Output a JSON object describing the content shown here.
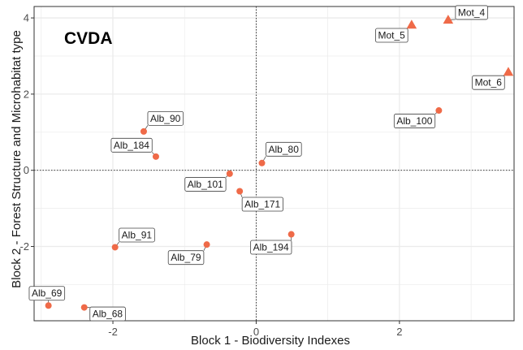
{
  "chart_data": {
    "type": "scatter",
    "annotation": "CVDA",
    "xlabel": "Block 1 - Biodiversity Indexes",
    "ylabel": "Block 2 - Forest Structure and Microhabitat type",
    "xlim": [
      -3.1,
      3.6
    ],
    "ylim": [
      -3.95,
      4.3
    ],
    "x_ticks": [
      -2,
      0,
      2
    ],
    "x_tick_labels": [
      "-2",
      "0",
      "2"
    ],
    "y_ticks": [
      -2,
      0,
      2,
      4
    ],
    "y_tick_labels": [
      "-2",
      "0",
      "2",
      "4"
    ],
    "reference_lines": {
      "x": 0,
      "y": 0,
      "style": "dotted"
    },
    "grid": true,
    "colors": {
      "point": "#ef6a48",
      "grid": "#ebebeb",
      "frame": "#333333",
      "label_border": "#444444"
    },
    "groups": [
      {
        "marker": "circle",
        "members": "Alb"
      },
      {
        "marker": "triangle",
        "members": "Mot"
      }
    ],
    "points": [
      {
        "label": "Mot_4",
        "x": 2.68,
        "y": 3.95,
        "marker": "triangle"
      },
      {
        "label": "Mot_5",
        "x": 2.17,
        "y": 3.82,
        "marker": "triangle"
      },
      {
        "label": "Mot_6",
        "x": 3.52,
        "y": 2.58,
        "marker": "triangle"
      },
      {
        "label": "Alb_100",
        "x": 2.55,
        "y": 1.57,
        "marker": "circle"
      },
      {
        "label": "Alb_90",
        "x": -1.57,
        "y": 1.02,
        "marker": "circle"
      },
      {
        "label": "Alb_184",
        "x": -1.4,
        "y": 0.36,
        "marker": "circle"
      },
      {
        "label": "Alb_80",
        "x": 0.08,
        "y": 0.19,
        "marker": "circle"
      },
      {
        "label": "Alb_101",
        "x": -0.37,
        "y": -0.09,
        "marker": "circle"
      },
      {
        "label": "Alb_171",
        "x": -0.23,
        "y": -0.55,
        "marker": "circle"
      },
      {
        "label": "Alb_194",
        "x": 0.49,
        "y": -1.68,
        "marker": "circle"
      },
      {
        "label": "Alb_91",
        "x": -1.97,
        "y": -2.02,
        "marker": "circle"
      },
      {
        "label": "Alb_79",
        "x": -0.69,
        "y": -1.95,
        "marker": "circle"
      },
      {
        "label": "Alb_69",
        "x": -2.9,
        "y": -3.55,
        "marker": "circle"
      },
      {
        "label": "Alb_68",
        "x": -2.4,
        "y": -3.6,
        "marker": "circle"
      }
    ]
  }
}
